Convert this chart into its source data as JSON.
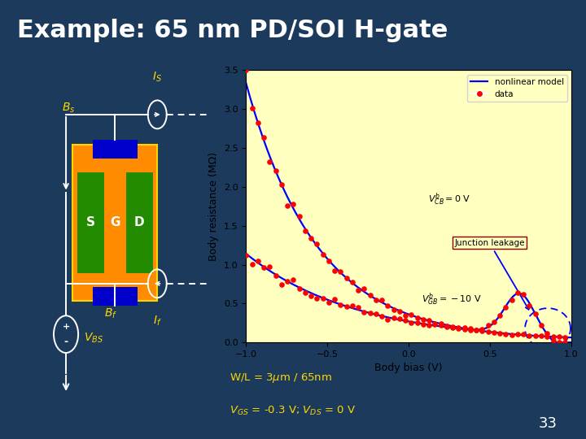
{
  "title": "Example: 65 nm PD/SOI H-gate",
  "bg_color": "#1B3A5C",
  "title_color": "white",
  "title_fontsize": 22,
  "plot_bg": "#FFFFC0",
  "gate_color": "#FF8C00",
  "sd_color": "#228B00",
  "body_color": "#0000CC",
  "wire_color": "white",
  "label_color": "#FFD700",
  "ylabel": "Body resistance (MΩ)",
  "xlabel": "Body bias (V)",
  "xlim": [
    -1,
    1
  ],
  "ylim": [
    0,
    3.5
  ],
  "page_num": "33"
}
